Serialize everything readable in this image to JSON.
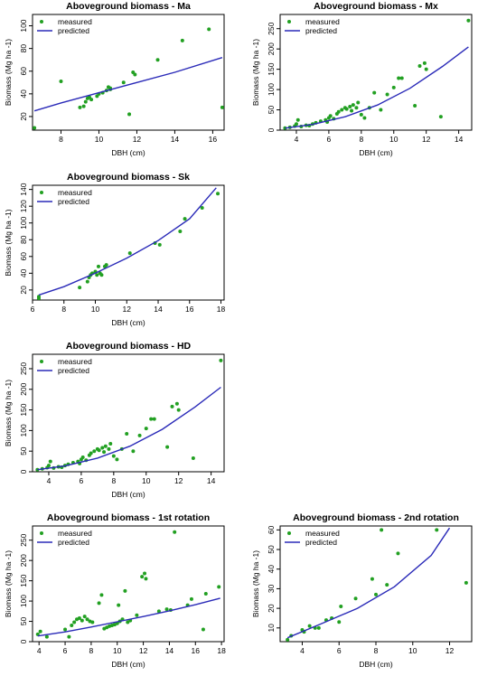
{
  "colors": {
    "measured": "#22a022",
    "predicted": "#2a2ab8",
    "axis": "#000000"
  },
  "chart_data": [
    {
      "type": "scatter",
      "title": "Aboveground biomass - Ma",
      "xlabel": "DBH (cm)",
      "ylabel": "Biomass (Mg ha -1)",
      "xlim": [
        6.5,
        16.6
      ],
      "ylim": [
        8,
        110
      ],
      "xticks": [
        8,
        10,
        12,
        14,
        16
      ],
      "yticks": [
        20,
        40,
        60,
        80,
        100
      ],
      "legend": {
        "position": "top-left",
        "entries": [
          "measured",
          "predicted"
        ]
      },
      "series": [
        {
          "name": "measured",
          "kind": "points",
          "x": [
            6.6,
            8.0,
            9.0,
            9.2,
            9.3,
            9.4,
            9.5,
            9.6,
            9.9,
            10.0,
            10.2,
            10.4,
            10.5,
            10.6,
            10.6,
            11.3,
            11.6,
            11.8,
            11.9,
            13.1,
            14.4,
            15.8,
            16.5
          ],
          "y": [
            10,
            51,
            28,
            29,
            33,
            36,
            37,
            35,
            38,
            40,
            41,
            43,
            46,
            44,
            45,
            50,
            22,
            59,
            57,
            70,
            87,
            97,
            28
          ]
        },
        {
          "name": "predicted",
          "kind": "line",
          "x": [
            6.6,
            8,
            10,
            12,
            14,
            16.5
          ],
          "y": [
            25,
            32,
            41,
            50,
            59,
            72
          ]
        }
      ]
    },
    {
      "type": "scatter",
      "title": "Aboveground biomass - Mx",
      "xlabel": "DBH (cm)",
      "ylabel": "Biomass (Mg ha -1)",
      "xlim": [
        3,
        14.8
      ],
      "ylim": [
        0,
        285
      ],
      "xticks": [
        4,
        6,
        8,
        10,
        12,
        14
      ],
      "yticks": [
        0,
        50,
        100,
        150,
        200,
        250
      ],
      "legend": {
        "position": "top-left",
        "entries": [
          "measured",
          "predicted"
        ]
      },
      "series": [
        {
          "name": "measured",
          "kind": "points",
          "x": [
            3.3,
            3.6,
            3.9,
            4.0,
            4.1,
            4.3,
            4.6,
            4.8,
            5.0,
            5.2,
            5.5,
            5.8,
            5.9,
            6.0,
            6.1,
            6.3,
            6.5,
            6.6,
            6.8,
            7.0,
            7.1,
            7.3,
            7.4,
            7.5,
            7.7,
            7.8,
            8.0,
            8.2,
            8.5,
            8.8,
            9.2,
            9.6,
            10.0,
            10.3,
            10.5,
            11.3,
            11.6,
            11.9,
            12.0,
            12.9,
            14.6
          ],
          "y": [
            5,
            7,
            10,
            15,
            25,
            9,
            12,
            11,
            15,
            18,
            22,
            25,
            20,
            30,
            35,
            28,
            40,
            45,
            50,
            55,
            52,
            58,
            48,
            62,
            55,
            68,
            38,
            30,
            55,
            92,
            50,
            88,
            105,
            128,
            128,
            60,
            158,
            165,
            150,
            33,
            270
          ]
        },
        {
          "name": "predicted",
          "kind": "line",
          "x": [
            3.3,
            5,
            7,
            9,
            11,
            13,
            14.6
          ],
          "y": [
            5,
            14,
            33,
            62,
            103,
            157,
            205
          ]
        }
      ]
    },
    {
      "type": "scatter",
      "title": "Aboveground biomass - Sk",
      "xlabel": "DBH (cm)",
      "ylabel": "Biomass (Mg ha -1)",
      "xlim": [
        6,
        18.2
      ],
      "ylim": [
        8,
        145
      ],
      "xticks": [
        6,
        8,
        10,
        12,
        14,
        16,
        18
      ],
      "yticks": [
        20,
        40,
        60,
        80,
        100,
        120,
        140
      ],
      "legend": {
        "position": "top-left",
        "entries": [
          "measured",
          "predicted"
        ]
      },
      "series": [
        {
          "name": "measured",
          "kind": "points",
          "x": [
            6.4,
            6.4,
            9.0,
            9.5,
            9.6,
            9.7,
            9.8,
            10.0,
            10.1,
            10.2,
            10.3,
            10.4,
            10.6,
            10.7,
            12.2,
            13.8,
            14.1,
            15.4,
            15.7,
            16.8,
            17.8
          ],
          "y": [
            10,
            12,
            23,
            30,
            35,
            38,
            40,
            42,
            38,
            48,
            40,
            38,
            48,
            50,
            64,
            76,
            74,
            90,
            105,
            118,
            135
          ]
        },
        {
          "name": "predicted",
          "kind": "line",
          "x": [
            6.4,
            8,
            10,
            12,
            14,
            16,
            17.7
          ],
          "y": [
            14,
            24,
            40,
            58,
            79,
            105,
            142
          ]
        }
      ]
    },
    {
      "type": "scatter",
      "title": "Aboveground biomass - HD",
      "xlabel": "DBH (cm)",
      "ylabel": "Biomass (Mg ha -1)",
      "xlim": [
        3,
        14.8
      ],
      "ylim": [
        0,
        285
      ],
      "xticks": [
        4,
        6,
        8,
        10,
        12,
        14
      ],
      "yticks": [
        0,
        50,
        100,
        150,
        200,
        250
      ],
      "legend": {
        "position": "top-left",
        "entries": [
          "measured",
          "predicted"
        ]
      },
      "series": [
        {
          "name": "measured",
          "kind": "points",
          "x": [
            3.3,
            3.6,
            3.9,
            4.0,
            4.1,
            4.3,
            4.6,
            4.8,
            5.0,
            5.2,
            5.5,
            5.8,
            5.9,
            6.0,
            6.1,
            6.3,
            6.5,
            6.6,
            6.8,
            7.0,
            7.1,
            7.3,
            7.4,
            7.5,
            7.7,
            7.8,
            8.0,
            8.2,
            8.5,
            8.8,
            9.2,
            9.6,
            10.0,
            10.3,
            10.5,
            11.3,
            11.6,
            11.9,
            12.0,
            12.9,
            14.6
          ],
          "y": [
            5,
            7,
            10,
            15,
            25,
            9,
            12,
            11,
            15,
            18,
            22,
            25,
            20,
            30,
            35,
            28,
            40,
            45,
            50,
            55,
            52,
            58,
            48,
            62,
            55,
            68,
            38,
            30,
            55,
            92,
            50,
            88,
            105,
            128,
            128,
            60,
            158,
            165,
            150,
            33,
            270
          ]
        },
        {
          "name": "predicted",
          "kind": "line",
          "x": [
            3.3,
            5,
            7,
            9,
            11,
            13,
            14.6
          ],
          "y": [
            5,
            14,
            33,
            62,
            103,
            157,
            205
          ]
        }
      ]
    },
    {
      "type": "scatter",
      "title": "Aboveground biomass - 1st rotation",
      "xlabel": "DBH (cm)",
      "ylabel": "Biomass (Mg ha -1)",
      "xlim": [
        3.5,
        18.2
      ],
      "ylim": [
        0,
        285
      ],
      "xticks": [
        4,
        6,
        8,
        10,
        12,
        14,
        16,
        18
      ],
      "yticks": [
        0,
        50,
        100,
        150,
        200,
        250
      ],
      "legend": {
        "position": "top-left",
        "entries": [
          "measured",
          "predicted"
        ]
      },
      "series": [
        {
          "name": "measured",
          "kind": "points",
          "x": [
            3.9,
            4.1,
            4.6,
            6.0,
            6.3,
            6.5,
            6.7,
            6.9,
            7.1,
            7.3,
            7.5,
            7.7,
            7.9,
            8.1,
            8.6,
            8.8,
            9.0,
            9.2,
            9.4,
            9.6,
            9.8,
            10.0,
            10.1,
            10.2,
            10.4,
            10.6,
            10.8,
            11.0,
            11.5,
            11.9,
            12.1,
            12.2,
            13.2,
            13.8,
            14.1,
            14.4,
            15.4,
            15.7,
            16.6,
            16.8,
            17.8
          ],
          "y": [
            18,
            25,
            12,
            30,
            12,
            40,
            48,
            55,
            58,
            52,
            62,
            55,
            50,
            48,
            95,
            115,
            32,
            35,
            38,
            40,
            42,
            45,
            90,
            50,
            55,
            125,
            48,
            52,
            65,
            160,
            168,
            155,
            75,
            80,
            78,
            270,
            90,
            105,
            30,
            118,
            135
          ]
        },
        {
          "name": "predicted",
          "kind": "line",
          "x": [
            3.9,
            6,
            8,
            10,
            12,
            14,
            16,
            17.9
          ],
          "y": [
            14,
            24,
            36,
            49,
            62,
            76,
            91,
            107
          ]
        }
      ]
    },
    {
      "type": "scatter",
      "title": "Aboveground biomass - 2nd rotation",
      "xlabel": "DBH (cm)",
      "ylabel": "Biomass (Mg ha -1)",
      "xlim": [
        2.8,
        13.2
      ],
      "ylim": [
        3,
        62
      ],
      "xticks": [
        4,
        6,
        8,
        10,
        12
      ],
      "yticks": [
        10,
        20,
        30,
        40,
        50,
        60
      ],
      "legend": {
        "position": "top-left",
        "entries": [
          "measured",
          "predicted"
        ]
      },
      "series": [
        {
          "name": "measured",
          "kind": "points",
          "x": [
            3.2,
            3.4,
            4.0,
            4.1,
            4.4,
            4.7,
            4.9,
            5.3,
            5.6,
            6.0,
            6.1,
            6.9,
            7.8,
            8.0,
            8.3,
            8.6,
            9.2,
            11.3,
            12.9
          ],
          "y": [
            4,
            6,
            9,
            8,
            11,
            10,
            10,
            14,
            15,
            13,
            21,
            25,
            35,
            27,
            60,
            32,
            48,
            60,
            33
          ]
        },
        {
          "name": "predicted",
          "kind": "line",
          "x": [
            3.2,
            5,
            7,
            9,
            11,
            12.0
          ],
          "y": [
            5,
            12,
            20,
            31,
            47,
            61
          ]
        }
      ]
    }
  ]
}
